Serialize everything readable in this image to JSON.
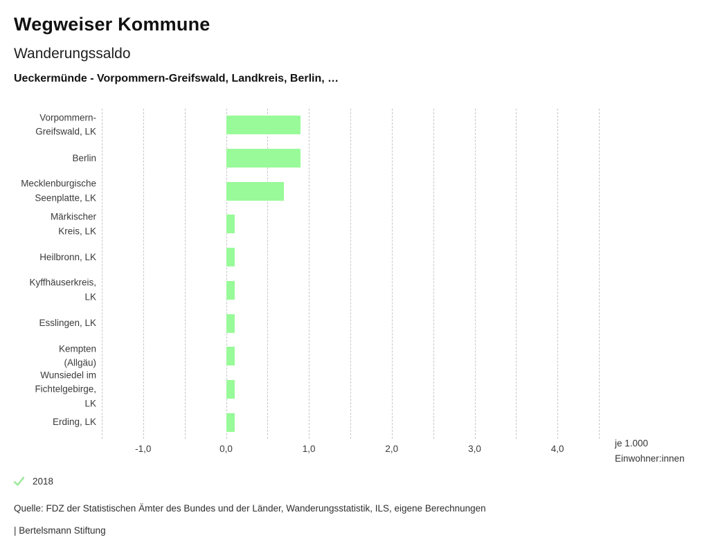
{
  "header": {
    "title": "Wegweiser Kommune",
    "subtitle": "Wanderungssaldo",
    "selection": "Ueckermünde - Vorpommern-Greifswald, Landkreis, Berlin, …"
  },
  "chart_data": {
    "type": "bar",
    "orientation": "horizontal",
    "title": "Wanderungssaldo",
    "categories": [
      "Vorpommern-Greifswald, LK",
      "Berlin",
      "Mecklenburgische Seenplatte, LK",
      "Märkischer Kreis, LK",
      "Heilbronn, LK",
      "Kyffhäuserkreis, LK",
      "Esslingen, LK",
      "Kempten (Allgäu)",
      "Wunsiedel im Fichtelgebirge, LK",
      "Erding, LK"
    ],
    "category_lines": [
      [
        "Vorpommern-",
        "Greifswald, LK"
      ],
      [
        "Berlin"
      ],
      [
        "Mecklenburgische",
        "Seenplatte, LK"
      ],
      [
        "Märkischer",
        "Kreis, LK"
      ],
      [
        "Heilbronn, LK"
      ],
      [
        "Kyffhäuserkreis,",
        "LK"
      ],
      [
        "Esslingen, LK"
      ],
      [
        "Kempten",
        "(Allgäu)"
      ],
      [
        "Wunsiedel im",
        "Fichtelgebirge,",
        "LK"
      ],
      [
        "Erding, LK"
      ]
    ],
    "series": [
      {
        "name": "2018",
        "values": [
          0.9,
          0.9,
          0.7,
          0.1,
          0.1,
          0.1,
          0.1,
          0.1,
          0.1,
          0.1
        ]
      }
    ],
    "xlabel_lines": [
      "je 1.000",
      "Einwohner:innen"
    ],
    "xlim": [
      -1.5,
      4.5
    ],
    "grid_step": 0.5,
    "grid": true,
    "x_ticks": [
      {
        "value": -1,
        "label": "-1,0"
      },
      {
        "value": 0,
        "label": "0,0"
      },
      {
        "value": 1,
        "label": "1,0"
      },
      {
        "value": 2,
        "label": "2,0"
      },
      {
        "value": 3,
        "label": "3,0"
      },
      {
        "value": 4,
        "label": "4,0"
      }
    ],
    "bar_color": "#98fa98",
    "legend_position": "bottom-left"
  },
  "legend": {
    "items": [
      {
        "label": "2018",
        "icon": "check-icon",
        "color": "#96e996"
      }
    ]
  },
  "footer": {
    "source": "Quelle: FDZ der Statistischen Ämter des Bundes und der Länder, Wanderungsstatistik, ILS, eigene Berechnungen",
    "attribution": "| Bertelsmann Stiftung"
  }
}
